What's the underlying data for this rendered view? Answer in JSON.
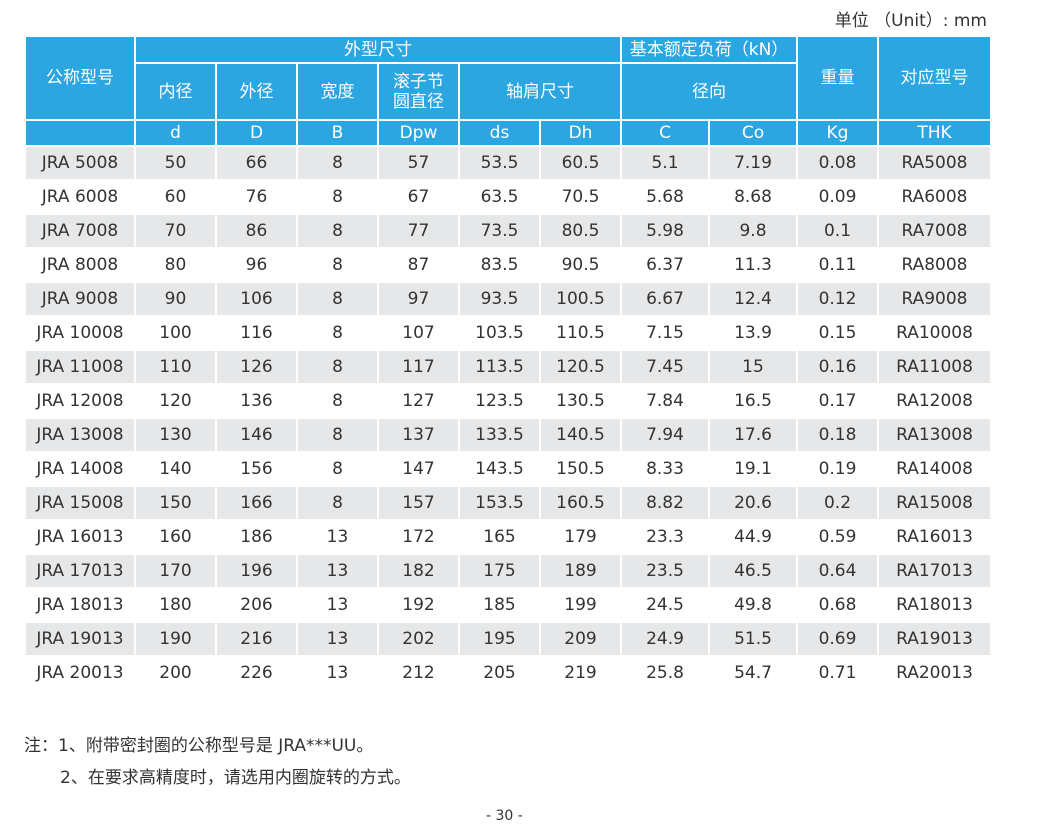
{
  "unit_label": "单位 （Unit）: mm",
  "headers": {
    "model": "公称型号",
    "outer_group": "外型尺寸",
    "load_group": "基本额定负荷（kN）",
    "weight": "重量",
    "thk_model": "对应型号",
    "inner_dia": "内径",
    "outer_dia": "外径",
    "width": "宽度",
    "pitch_dia_l1": "滚子节",
    "pitch_dia_l2": "圆直径",
    "shoulder": "轴肩尺寸",
    "radial": "径向"
  },
  "symbols": [
    "d",
    "D",
    "B",
    "Dpw",
    "ds",
    "Dh",
    "C",
    "Co",
    "Kg",
    "THK"
  ],
  "rows": [
    [
      "JRA 5008",
      "50",
      "66",
      "8",
      "57",
      "53.5",
      "60.5",
      "5.1",
      "7.19",
      "0.08",
      "RA5008"
    ],
    [
      "JRA 6008",
      "60",
      "76",
      "8",
      "67",
      "63.5",
      "70.5",
      "5.68",
      "8.68",
      "0.09",
      "RA6008"
    ],
    [
      "JRA 7008",
      "70",
      "86",
      "8",
      "77",
      "73.5",
      "80.5",
      "5.98",
      "9.8",
      "0.1",
      "RA7008"
    ],
    [
      "JRA 8008",
      "80",
      "96",
      "8",
      "87",
      "83.5",
      "90.5",
      "6.37",
      "11.3",
      "0.11",
      "RA8008"
    ],
    [
      "JRA 9008",
      "90",
      "106",
      "8",
      "97",
      "93.5",
      "100.5",
      "6.67",
      "12.4",
      "0.12",
      "RA9008"
    ],
    [
      "JRA 10008",
      "100",
      "116",
      "8",
      "107",
      "103.5",
      "110.5",
      "7.15",
      "13.9",
      "0.15",
      "RA10008"
    ],
    [
      "JRA 11008",
      "110",
      "126",
      "8",
      "117",
      "113.5",
      "120.5",
      "7.45",
      "15",
      "0.16",
      "RA11008"
    ],
    [
      "JRA 12008",
      "120",
      "136",
      "8",
      "127",
      "123.5",
      "130.5",
      "7.84",
      "16.5",
      "0.17",
      "RA12008"
    ],
    [
      "JRA 13008",
      "130",
      "146",
      "8",
      "137",
      "133.5",
      "140.5",
      "7.94",
      "17.6",
      "0.18",
      "RA13008"
    ],
    [
      "JRA 14008",
      "140",
      "156",
      "8",
      "147",
      "143.5",
      "150.5",
      "8.33",
      "19.1",
      "0.19",
      "RA14008"
    ],
    [
      "JRA 15008",
      "150",
      "166",
      "8",
      "157",
      "153.5",
      "160.5",
      "8.82",
      "20.6",
      "0.2",
      "RA15008"
    ],
    [
      "JRA 16013",
      "160",
      "186",
      "13",
      "172",
      "165",
      "179",
      "23.3",
      "44.9",
      "0.59",
      "RA16013"
    ],
    [
      "JRA 17013",
      "170",
      "196",
      "13",
      "182",
      "175",
      "189",
      "23.5",
      "46.5",
      "0.64",
      "RA17013"
    ],
    [
      "JRA 18013",
      "180",
      "206",
      "13",
      "192",
      "185",
      "199",
      "24.5",
      "49.8",
      "0.68",
      "RA18013"
    ],
    [
      "JRA 19013",
      "190",
      "216",
      "13",
      "202",
      "195",
      "209",
      "24.9",
      "51.5",
      "0.69",
      "RA19013"
    ],
    [
      "JRA 20013",
      "200",
      "226",
      "13",
      "212",
      "205",
      "219",
      "25.8",
      "54.7",
      "0.71",
      "RA20013"
    ]
  ],
  "notes": [
    "注：1、附带密封圈的公称型号是 JRA***UU。",
    "2、在要求高精度时，请选用内圈旋转的方式。"
  ],
  "page_number": "- 30 -",
  "colors": {
    "header_bg": "#2ca6e0",
    "row_shade": "#e6e7e8"
  }
}
